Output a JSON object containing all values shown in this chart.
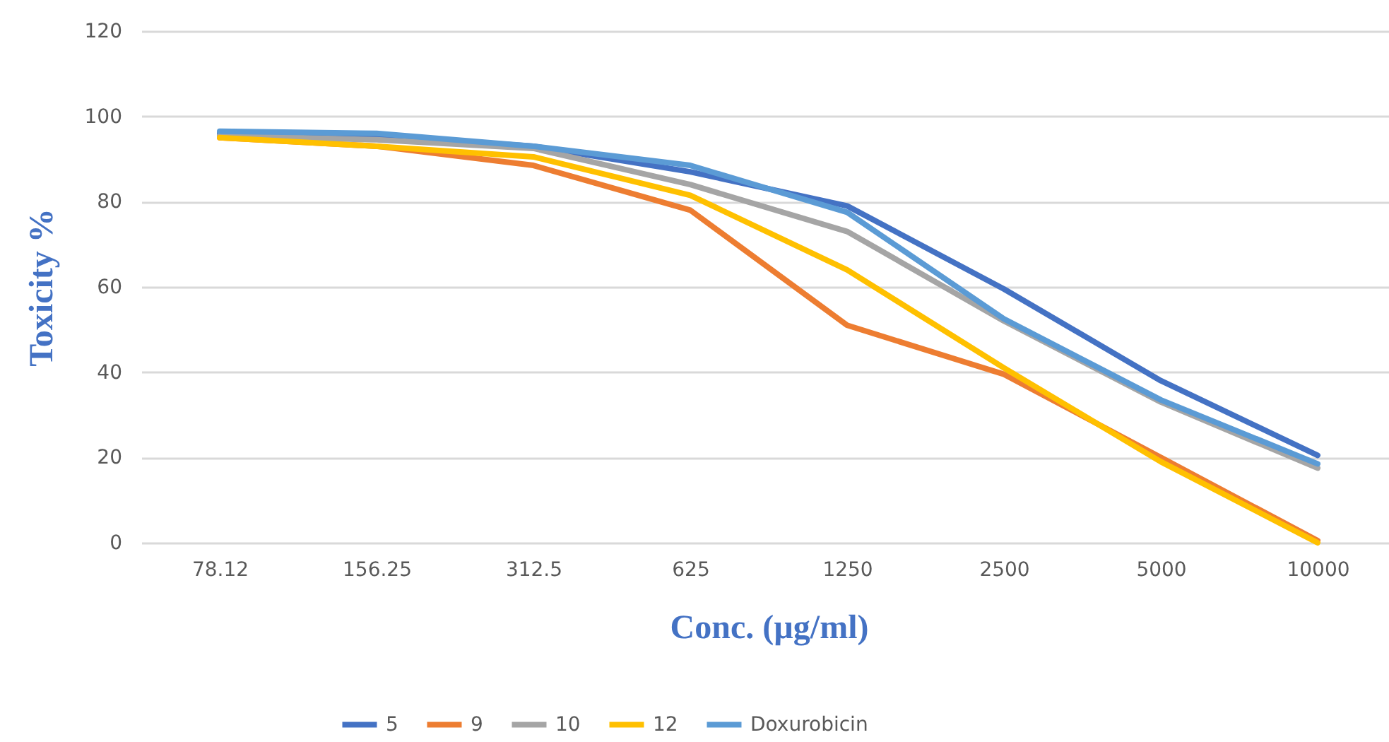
{
  "chart_data": {
    "type": "line",
    "xlabel": "Conc. (µg/ml)",
    "ylabel": "Toxicity %",
    "categories": [
      "78.12",
      "156.25",
      "312.5",
      "625",
      "1250",
      "2500",
      "5000",
      "10000"
    ],
    "series": [
      {
        "name": "5",
        "color": "#4472c4",
        "values": [
          96,
          95.5,
          93,
          87,
          79,
          59.5,
          38,
          20.5
        ]
      },
      {
        "name": "9",
        "color": "#ed7d31",
        "values": [
          95,
          93,
          88.5,
          78,
          51,
          39.5,
          20,
          0.5
        ]
      },
      {
        "name": "10",
        "color": "#a5a5a5",
        "values": [
          95.5,
          94.5,
          92.5,
          84,
          73,
          52,
          33,
          17.5
        ]
      },
      {
        "name": "12",
        "color": "#ffc000",
        "values": [
          95,
          93,
          90.5,
          81.5,
          64,
          41,
          19,
          0
        ]
      },
      {
        "name": "Doxurobicin",
        "color": "#5b9bd5",
        "values": [
          96.5,
          96,
          93,
          88.5,
          77.5,
          52.5,
          33.5,
          18.5
        ]
      }
    ],
    "ylim": [
      0,
      120
    ],
    "yticks": [
      0,
      20,
      40,
      60,
      80,
      100,
      120
    ],
    "grid": "y",
    "legend": "bottom",
    "marker": "none",
    "line_style": "solid"
  }
}
